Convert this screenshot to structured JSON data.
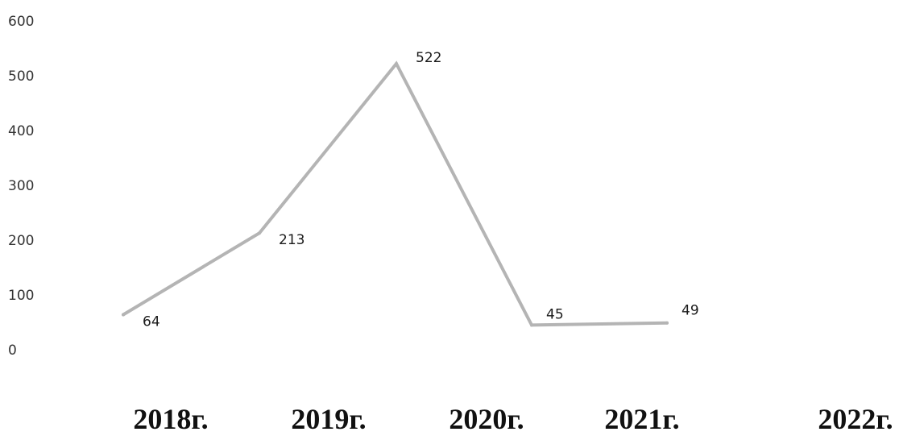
{
  "chart_data": {
    "type": "line",
    "title": "",
    "xlabel": "",
    "ylabel": "",
    "categories": [
      "2018г.",
      "2019г.",
      "2020г.",
      "2021г.",
      "2022г."
    ],
    "series": [
      {
        "values": [
          64,
          213,
          522,
          45,
          49
        ]
      }
    ],
    "data_labels": [
      "64",
      "213",
      "522",
      "45",
      "49"
    ],
    "y_ticks": [
      "0",
      "100",
      "200",
      "300",
      "400",
      "500",
      "600"
    ],
    "ylim": [
      0,
      600
    ],
    "grid": false,
    "legend": "none",
    "line_color": "#b4b4b4"
  }
}
